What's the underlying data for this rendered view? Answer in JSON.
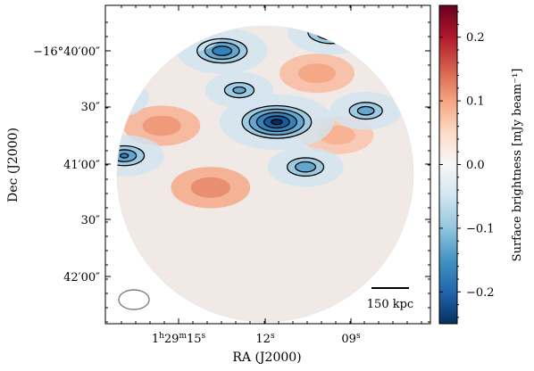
{
  "chart_data": {
    "type": "heatmap",
    "xlabel": "RA (J2000)",
    "ylabel": "Dec (J2000)",
    "colorbar_label": "Surface brightness [mJy beam⁻¹]",
    "colormap": "diverging red-white-blue",
    "color_range": [
      -0.25,
      0.25
    ],
    "colorbar_ticks": [
      {
        "value": 0.2,
        "label": "0.2"
      },
      {
        "value": 0.1,
        "label": "0.1"
      },
      {
        "value": 0.0,
        "label": "0.0"
      },
      {
        "value": -0.1,
        "label": "−0.1"
      },
      {
        "value": -0.2,
        "label": "−0.2"
      }
    ],
    "x_ticks": [
      "1h29m15s",
      "12s",
      "09s"
    ],
    "y_ticks": [
      "−16°40′00″",
      "30″",
      "41′00″",
      "30″",
      "42′00″"
    ],
    "scale_bar_label": "150 kpc",
    "grid": false,
    "negative_features": [
      {
        "ra_s": 13.5,
        "dec_arcsec": 2430,
        "peak": -0.17
      },
      {
        "ra_s": 14.7,
        "dec_arcsec": 2421,
        "peak": -0.11
      },
      {
        "ra_s": 9.7,
        "dec_arcsec": 2420,
        "peak": -0.16
      },
      {
        "ra_s": 12.9,
        "dec_arcsec": 2451,
        "peak": -0.11
      },
      {
        "ra_s": 11.6,
        "dec_arcsec": 2468,
        "peak": -0.23
      },
      {
        "ra_s": 17.5,
        "dec_arcsec": 2455,
        "peak": -0.15
      },
      {
        "ra_s": 16.9,
        "dec_arcsec": 2486,
        "peak": -0.14
      },
      {
        "ra_s": 10.6,
        "dec_arcsec": 2492,
        "peak": -0.13
      },
      {
        "ra_s": 8.5,
        "dec_arcsec": 2462,
        "peak": -0.12
      }
    ],
    "positive_features": [
      {
        "ra_s": 15.6,
        "dec_arcsec": 2470,
        "peak": 0.11
      },
      {
        "ra_s": 10.2,
        "dec_arcsec": 2442,
        "peak": 0.1
      },
      {
        "ra_s": 13.9,
        "dec_arcsec": 2503,
        "peak": 0.12
      },
      {
        "ra_s": 9.5,
        "dec_arcsec": 2475,
        "peak": 0.09
      }
    ]
  }
}
